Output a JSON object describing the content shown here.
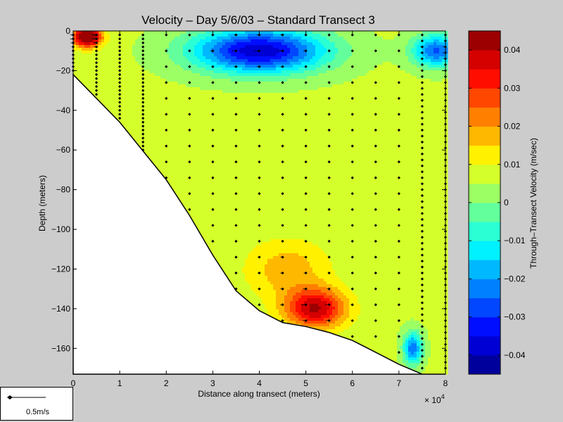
{
  "chart_data": {
    "type": "heatmap",
    "title": "Velocity – Day 5/6/03 – Standard Transect 3",
    "xlabel": "Distance along transect (meters)",
    "ylabel": "Depth (meters)",
    "x_exponent": "× 10",
    "x_exponent_power": "4",
    "xlim": [
      0,
      80000
    ],
    "ylim": [
      -173,
      0
    ],
    "x_ticks": [
      0,
      10000,
      20000,
      30000,
      40000,
      50000,
      60000,
      70000,
      80000
    ],
    "x_tick_labels": [
      "0",
      "1",
      "2",
      "3",
      "4",
      "5",
      "6",
      "7",
      "8"
    ],
    "y_ticks": [
      0,
      -20,
      -40,
      -60,
      -80,
      -100,
      -120,
      -140,
      -160
    ],
    "y_tick_labels": [
      "0",
      "−20",
      "−40",
      "−60",
      "−80",
      "−100",
      "−120",
      "−140",
      "−160"
    ],
    "bottom_profile": {
      "x": [
        0,
        10000,
        20000,
        25000,
        30000,
        35000,
        40000,
        45000,
        50000,
        55000,
        60000,
        65000,
        70000,
        75000,
        80000
      ],
      "depth": [
        -22,
        -46,
        -75,
        -93,
        -113,
        -131,
        -141,
        -147,
        -149,
        -152,
        -156,
        -162,
        -168,
        -173,
        -173
      ]
    },
    "colorbar": {
      "label": "Through–Transect Velocity (m/sec)",
      "range": [
        -0.045,
        0.045
      ],
      "levels": 18,
      "ticks": [
        0.04,
        0.03,
        0.02,
        0.01,
        0,
        -0.01,
        -0.02,
        -0.03,
        -0.04
      ],
      "tick_labels": [
        "0.04",
        "0.03",
        "0.02",
        "0.01",
        "0",
        "−0.01",
        "−0.02",
        "−0.03",
        "−0.04"
      ]
    },
    "velocity_features": [
      {
        "x": 40000,
        "depth": -10,
        "sx": 14000,
        "sy": 11,
        "value": -0.045
      },
      {
        "x": 78000,
        "depth": -10,
        "sx": 5000,
        "sy": 8,
        "value": -0.032
      },
      {
        "x": 52000,
        "depth": -140,
        "sx": 6500,
        "sy": 10,
        "value": 0.034
      },
      {
        "x": 46000,
        "depth": -120,
        "sx": 9000,
        "sy": 15,
        "value": 0.012
      },
      {
        "x": 3000,
        "depth": -3,
        "sx": 3000,
        "sy": 5,
        "value": 0.05
      },
      {
        "x": 73000,
        "depth": -160,
        "sx": 2000,
        "sy": 8,
        "value": -0.03
      }
    ],
    "profile_stations_x": [
      0,
      5000,
      10000,
      15000,
      20000,
      25000,
      30000,
      35000,
      40000,
      45000,
      50000,
      55000,
      60000,
      65000,
      70000,
      75000,
      80000
    ],
    "scale_arrow": {
      "label": "0.5m/s"
    }
  }
}
